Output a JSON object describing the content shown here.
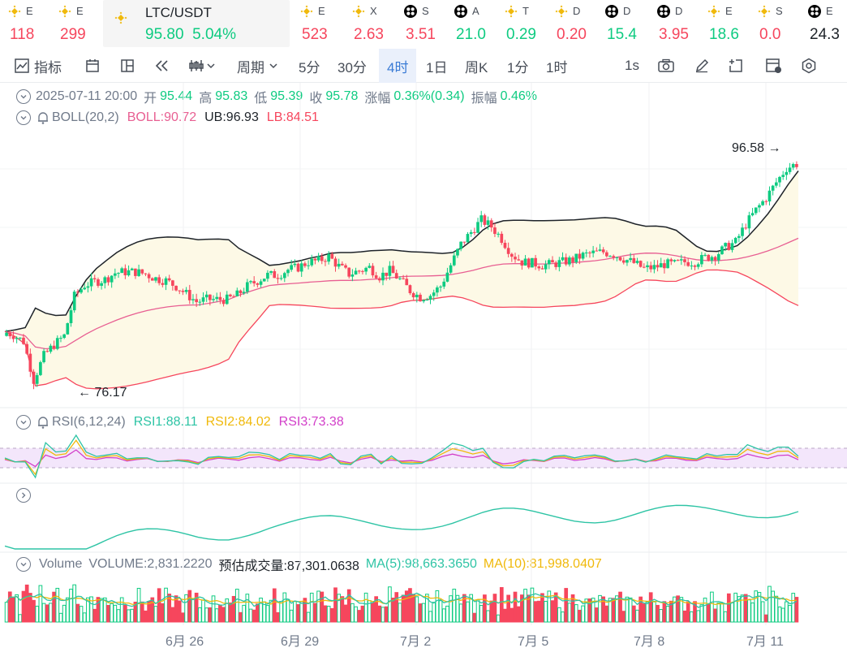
{
  "ticker": [
    {
      "icon": "bnb-icon",
      "sym": "E",
      "val": "118",
      "dir": "dn"
    },
    {
      "icon": "bnb-icon",
      "sym": "E",
      "val": "299",
      "dir": "dn"
    },
    {
      "icon": "bnb-icon",
      "sym": "E",
      "val": "523",
      "dir": "dn"
    },
    {
      "icon": "bnb-icon",
      "sym": "X",
      "val": "2.63",
      "dir": "dn"
    },
    {
      "icon": "bw-icon",
      "sym": "S",
      "val": "3.51",
      "dir": "dn"
    },
    {
      "icon": "bw-icon",
      "sym": "A",
      "val": "21.0",
      "dir": "up"
    },
    {
      "icon": "bnb-icon",
      "sym": "T",
      "val": "0.29",
      "dir": "up"
    },
    {
      "icon": "bnb-icon",
      "sym": "D",
      "val": "0.20",
      "dir": "dn"
    },
    {
      "icon": "bw-icon",
      "sym": "D",
      "val": "15.4",
      "dir": "up"
    },
    {
      "icon": "bw-icon",
      "sym": "D",
      "val": "3.95",
      "dir": "dn"
    },
    {
      "icon": "bnb-icon",
      "sym": "E",
      "val": "18.6",
      "dir": "up"
    },
    {
      "icon": "bnb-icon",
      "sym": "S",
      "val": "0.0",
      "dir": "dn"
    },
    {
      "icon": "bw-icon",
      "sym": "E",
      "val": "24.3",
      "dir": "neu"
    }
  ],
  "active": {
    "symbol": "LTC/USDT",
    "price": "95.80",
    "change": "5.04%"
  },
  "toolbar": {
    "indicators": "指标",
    "period": "周期",
    "m5": "5分",
    "m30": "30分",
    "h4": "4时",
    "d1": "1日",
    "week": "周K",
    "m1": "1分",
    "h1": "1时",
    "realtime": "1s"
  },
  "ohlc": {
    "date": "2025-07-11 20:00",
    "open_l": "开",
    "open": "95.44",
    "high_l": "高",
    "high": "95.83",
    "low_l": "低",
    "low": "95.39",
    "close_l": "收",
    "close": "95.78",
    "chg_l": "涨幅",
    "chg": "0.36%(0.34)",
    "amp_l": "振幅",
    "amp": "0.46%"
  },
  "boll": {
    "name": "BOLL(20,2)",
    "mid": "BOLL:90.72",
    "ub": "UB:96.93",
    "lb": "LB:84.51"
  },
  "rsi": {
    "name": "RSI(6,12,24)",
    "r1": "RSI1:88.11",
    "r2": "RSI2:84.02",
    "r3": "RSI3:73.38"
  },
  "vol": {
    "name": "Volume",
    "v": "VOLUME:2,831.2220",
    "est": "预估成交量:87,301.0638",
    "ma5": "MA(5):98,663.3650",
    "ma10": "MA(10):81,998.0407"
  },
  "annot": {
    "high": "96.58",
    "low": "76.17"
  },
  "xlabels": [
    "6月 26",
    "6月 29",
    "7月 2",
    "7月 5",
    "7月 8",
    "7月 11"
  ],
  "colors": {
    "up": "#0ecb81",
    "down": "#f6465d",
    "ub": "#1e2329",
    "mid": "#e85f92",
    "lb": "#f6465d",
    "rsi1": "#2ec4a5",
    "rsi2": "#f0b90b",
    "rsi3": "#d23fc9",
    "ma5": "#2ec4a5",
    "ma10": "#f0b90b"
  },
  "chart_data": {
    "type": "candlestick",
    "ylim": [
      74,
      99
    ],
    "close": [
      80.6,
      80.3,
      79.7,
      76.2,
      78.4,
      79.4,
      80.2,
      83.8,
      84.8,
      85.1,
      85.3,
      85.9,
      86.0,
      86.0,
      85.8,
      85.4,
      85.2,
      84.7,
      84.0,
      83.3,
      83.5,
      83.5,
      83.5,
      83.9,
      84.7,
      85.2,
      85.7,
      85.7,
      86.2,
      86.4,
      86.9,
      87.0,
      87.4,
      86.5,
      85.8,
      86.1,
      86.4,
      85.6,
      86.1,
      85.3,
      84.3,
      83.7,
      83.9,
      84.7,
      86.6,
      88.5,
      89.6,
      90.7,
      90.1,
      89.0,
      87.6,
      86.9,
      86.8,
      86.6,
      86.7,
      86.9,
      87.1,
      87.5,
      87.7,
      87.8,
      87.6,
      87.2,
      86.8,
      86.3,
      86.4,
      86.7,
      86.7,
      86.9,
      86.9,
      87.3,
      87.5,
      88.2,
      88.7,
      90.3,
      91.6,
      92.7,
      94.1,
      95.4,
      95.78
    ]
  }
}
